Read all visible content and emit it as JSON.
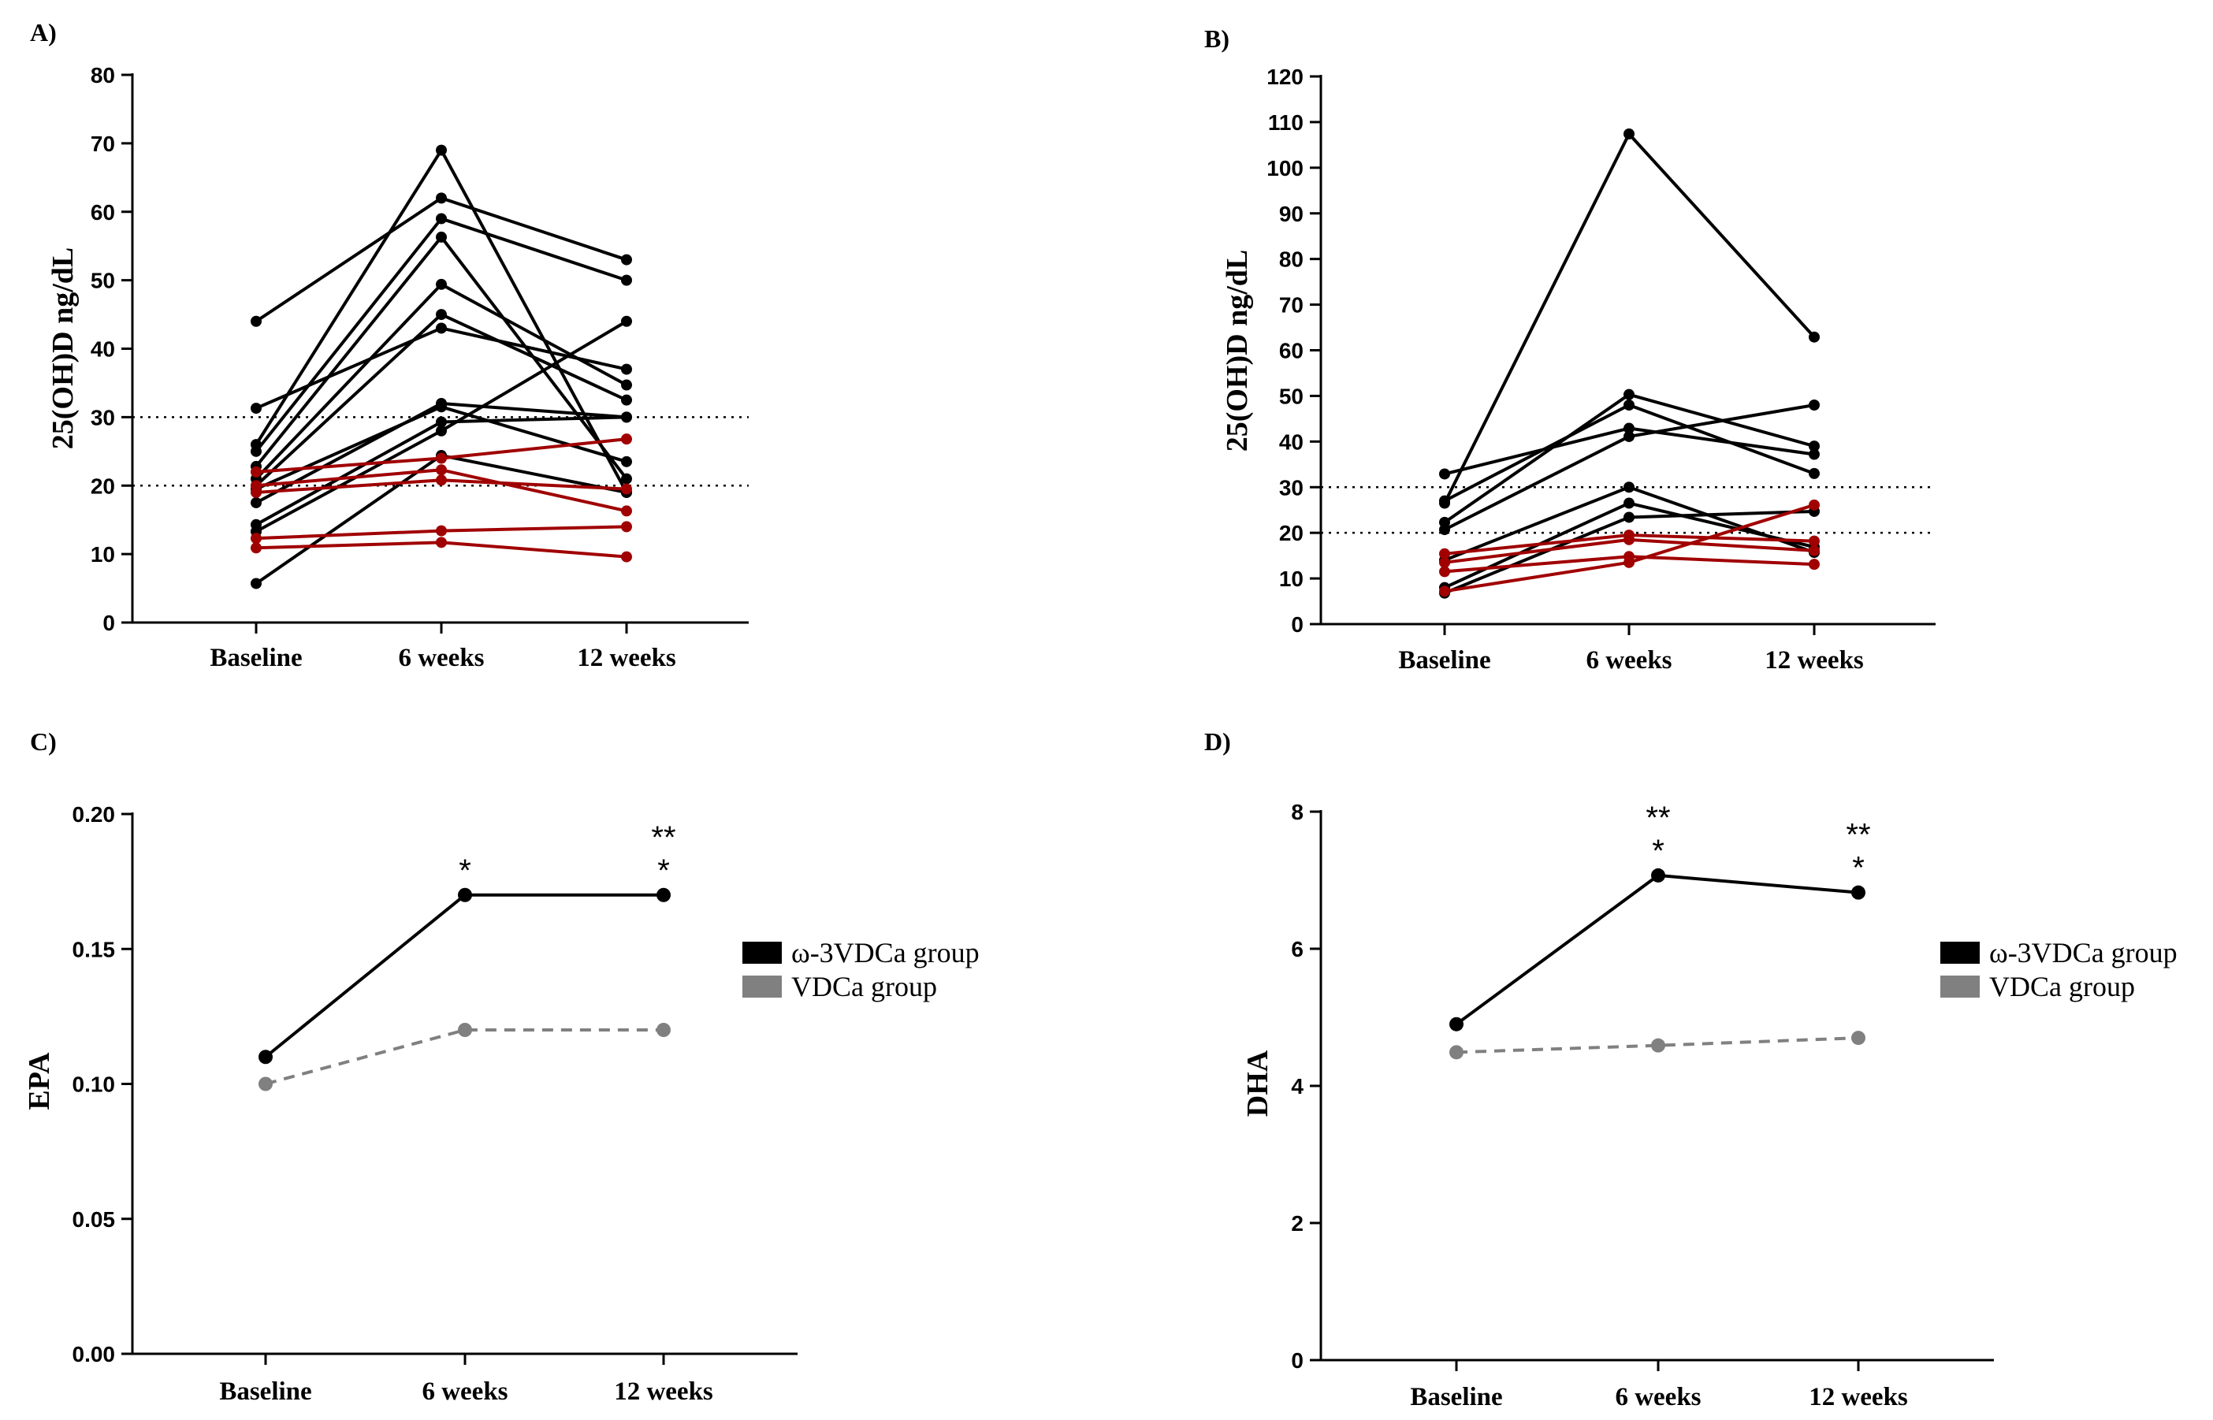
{
  "chart_data": [
    {
      "panel": "A)",
      "type": "line",
      "ylabel": "25(OH)D ng/dL",
      "categories": [
        "Baseline",
        "6 weeks",
        "12 weeks"
      ],
      "ylim": [
        0,
        80
      ],
      "yticks": [
        0,
        10,
        20,
        30,
        40,
        50,
        60,
        70,
        80
      ],
      "reference_lines": [
        20,
        30
      ],
      "series": [
        {
          "name": "b1",
          "color": "#000000",
          "values": [
            44,
            62,
            53
          ]
        },
        {
          "name": "b2",
          "color": "#000000",
          "values": [
            26,
            69,
            19
          ]
        },
        {
          "name": "b3",
          "color": "#000000",
          "values": [
            25,
            59,
            50
          ]
        },
        {
          "name": "b4",
          "color": "#000000",
          "values": [
            31.3,
            43,
            37
          ]
        },
        {
          "name": "b5",
          "color": "#000000",
          "values": [
            22.8,
            56.3,
            21
          ]
        },
        {
          "name": "b6",
          "color": "#000000",
          "values": [
            21,
            49.4,
            34.7
          ]
        },
        {
          "name": "b7",
          "color": "#000000",
          "values": [
            20,
            45,
            32.5
          ]
        },
        {
          "name": "b8",
          "color": "#000000",
          "values": [
            17.5,
            32,
            30
          ]
        },
        {
          "name": "b9",
          "color": "#000000",
          "values": [
            14.3,
            29.3,
            30
          ]
        },
        {
          "name": "b10",
          "color": "#000000",
          "values": [
            13.3,
            28,
            44
          ]
        },
        {
          "name": "b11",
          "color": "#000000",
          "values": [
            19.5,
            31.5,
            23.5
          ]
        },
        {
          "name": "b12",
          "color": "#000000",
          "values": [
            5.7,
            24.4,
            19
          ]
        },
        {
          "name": "r1",
          "color": "#a00000",
          "values": [
            22,
            24,
            26.8
          ]
        },
        {
          "name": "r2",
          "color": "#a00000",
          "values": [
            20,
            22.3,
            16.3
          ]
        },
        {
          "name": "r3",
          "color": "#a00000",
          "values": [
            19,
            20.8,
            19.5
          ]
        },
        {
          "name": "r4",
          "color": "#a00000",
          "values": [
            12.3,
            13.4,
            14
          ]
        },
        {
          "name": "r5",
          "color": "#a00000",
          "values": [
            10.9,
            11.7,
            9.6
          ]
        }
      ]
    },
    {
      "panel": "B)",
      "type": "line",
      "ylabel": "25(OH)D ng/dL",
      "categories": [
        "Baseline",
        "6 weeks",
        "12 weeks"
      ],
      "ylim": [
        0,
        120
      ],
      "yticks": [
        0,
        10,
        20,
        30,
        40,
        50,
        60,
        70,
        80,
        90,
        100,
        110,
        120
      ],
      "reference_lines": [
        20,
        30
      ],
      "series": [
        {
          "name": "b1",
          "color": "#000000",
          "values": [
            32.9,
            42.9,
            37.2
          ]
        },
        {
          "name": "b2",
          "color": "#000000",
          "values": [
            27,
            48,
            33
          ]
        },
        {
          "name": "b3",
          "color": "#000000",
          "values": [
            26.5,
            107.4,
            62.9
          ]
        },
        {
          "name": "b4",
          "color": "#000000",
          "values": [
            22.3,
            50.3,
            39
          ]
        },
        {
          "name": "b5",
          "color": "#000000",
          "values": [
            20.7,
            41.1,
            48
          ]
        },
        {
          "name": "b6",
          "color": "#000000",
          "values": [
            14,
            30,
            15.7
          ]
        },
        {
          "name": "b7",
          "color": "#000000",
          "values": [
            8,
            26.5,
            16.9
          ]
        },
        {
          "name": "b8",
          "color": "#000000",
          "values": [
            6.8,
            23.4,
            24.7
          ]
        },
        {
          "name": "r1",
          "color": "#a00000",
          "values": [
            15.4,
            19.5,
            18.2
          ]
        },
        {
          "name": "r2",
          "color": "#a00000",
          "values": [
            13.5,
            18.5,
            16.1
          ]
        },
        {
          "name": "r3",
          "color": "#a00000",
          "values": [
            11.5,
            14.8,
            13.1
          ]
        },
        {
          "name": "r4",
          "color": "#a00000",
          "values": [
            7.2,
            13.5,
            26.1
          ]
        }
      ]
    },
    {
      "panel": "C)",
      "type": "line",
      "ylabel": "EPA",
      "categories": [
        "Baseline",
        "6 weeks",
        "12 weeks"
      ],
      "ylim": [
        0,
        0.2
      ],
      "yticks": [
        "0.00",
        "0.05",
        "0.10",
        "0.15",
        "0.20"
      ],
      "series": [
        {
          "name": "ω-3VDCa group",
          "color": "#000000",
          "dashed": false,
          "values": [
            0.11,
            0.17,
            0.17
          ]
        },
        {
          "name": "VDCa group",
          "color": "#808080",
          "dashed": true,
          "values": [
            0.1,
            0.12,
            0.12
          ]
        }
      ],
      "annotations": [
        {
          "category": "6 weeks",
          "lines": [
            "*"
          ]
        },
        {
          "category": "12 weeks",
          "lines": [
            "**",
            "*"
          ]
        }
      ],
      "legend": [
        "ω-3VDCa group",
        "VDCa group"
      ],
      "legend_position": "right"
    },
    {
      "panel": "D)",
      "type": "line",
      "ylabel": "DHA",
      "categories": [
        "Baseline",
        "6 weeks",
        "12 weeks"
      ],
      "ylim": [
        0,
        8
      ],
      "yticks": [
        "0",
        "2",
        "4",
        "6",
        "8"
      ],
      "series": [
        {
          "name": "ω-3VDCa group",
          "color": "#000000",
          "dashed": false,
          "values": [
            4.9,
            7.07,
            6.82
          ]
        },
        {
          "name": "VDCa group",
          "color": "#808080",
          "dashed": true,
          "values": [
            4.49,
            4.59,
            4.7
          ]
        }
      ],
      "annotations": [
        {
          "category": "6 weeks",
          "lines": [
            "**",
            "*"
          ]
        },
        {
          "category": "12 weeks",
          "lines": [
            "**",
            "*"
          ]
        }
      ],
      "legend": [
        "ω-3VDCa group",
        "VDCa group"
      ],
      "legend_position": "right"
    }
  ]
}
